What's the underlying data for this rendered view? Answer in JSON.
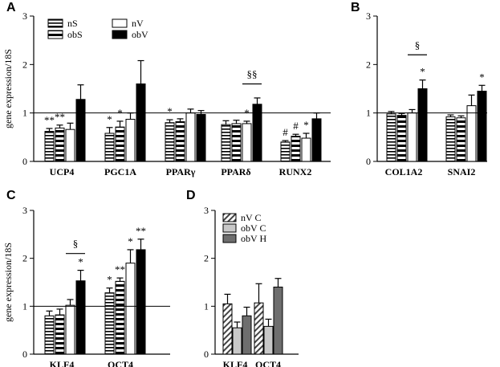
{
  "colors": {
    "black": "#000000",
    "white": "#ffffff",
    "light_gray": "#c8c8c8",
    "dark_gray": "#6e6e6e"
  },
  "chart_data": [
    {
      "panel": "A",
      "type": "bar",
      "ylabel": "gene expression/18S",
      "ylim": [
        0,
        3
      ],
      "yticks": [
        "0",
        "1",
        "2",
        "3"
      ],
      "reference_line": 1,
      "categories": [
        "UCP4",
        "PGC1A",
        "PPARγ",
        "PPARδ",
        "RUNX2"
      ],
      "legend": [
        "nS",
        "obS",
        "nV",
        "obV"
      ],
      "series": [
        {
          "name": "nS",
          "pattern": "hstripe-thin",
          "values": [
            0.62,
            0.58,
            0.8,
            0.76,
            0.4
          ],
          "errors": [
            0.06,
            0.12,
            0.06,
            0.08,
            0.03
          ]
        },
        {
          "name": "obS",
          "pattern": "hstripe-thick",
          "values": [
            0.69,
            0.71,
            0.82,
            0.78,
            0.52
          ],
          "errors": [
            0.06,
            0.12,
            0.06,
            0.07,
            0.04
          ]
        },
        {
          "name": "nV",
          "pattern": "white",
          "values": [
            0.66,
            0.87,
            1.0,
            0.78,
            0.48
          ],
          "errors": [
            0.13,
            0.13,
            0.08,
            0.05,
            0.1
          ]
        },
        {
          "name": "obV",
          "pattern": "black",
          "values": [
            1.28,
            1.6,
            0.97,
            1.18,
            0.88
          ],
          "errors": [
            0.3,
            0.48,
            0.08,
            0.13,
            0.12
          ]
        }
      ],
      "annotations": [
        {
          "cat": 0,
          "series": 0,
          "text": "**"
        },
        {
          "cat": 0,
          "series": 1,
          "text": "**"
        },
        {
          "cat": 1,
          "series": 0,
          "text": "*"
        },
        {
          "cat": 1,
          "series": 1,
          "text": "*"
        },
        {
          "cat": 2,
          "series": 0,
          "text": "*"
        },
        {
          "cat": 3,
          "series": 2,
          "text": "*"
        },
        {
          "cat": 4,
          "series": 0,
          "text": "#"
        },
        {
          "cat": 4,
          "series": 1,
          "text": "#"
        },
        {
          "cat": 4,
          "series": 2,
          "text": "*"
        }
      ],
      "brackets": [
        {
          "cat": 3,
          "from": 2,
          "to": 3,
          "text": "§§",
          "y": 1.6
        }
      ]
    },
    {
      "panel": "B",
      "type": "bar",
      "ylim": [
        0,
        3
      ],
      "yticks": [
        "0",
        "1",
        "2",
        "3"
      ],
      "reference_line": 1,
      "categories": [
        "COL1A2",
        "SNAI2"
      ],
      "series": [
        {
          "name": "nS",
          "pattern": "hstripe-thin",
          "values": [
            0.98,
            0.92
          ],
          "errors": [
            0.05,
            0.04
          ]
        },
        {
          "name": "obS",
          "pattern": "hstripe-thick",
          "values": [
            0.95,
            0.9
          ],
          "errors": [
            0.04,
            0.04
          ]
        },
        {
          "name": "nV",
          "pattern": "white",
          "values": [
            1.0,
            1.15
          ],
          "errors": [
            0.07,
            0.22
          ]
        },
        {
          "name": "obV",
          "pattern": "black",
          "values": [
            1.5,
            1.45
          ],
          "errors": [
            0.18,
            0.12
          ]
        }
      ],
      "annotations": [
        {
          "cat": 0,
          "series": 3,
          "text": "*"
        },
        {
          "cat": 1,
          "series": 3,
          "text": "*"
        }
      ],
      "brackets": [
        {
          "cat": 0,
          "from": 2,
          "to": 3,
          "text": "§",
          "y": 2.2
        }
      ]
    },
    {
      "panel": "C",
      "type": "bar",
      "ylabel": "gene expression/18S",
      "ylim": [
        0,
        3
      ],
      "yticks": [
        "0",
        "1",
        "2",
        "3"
      ],
      "reference_line": 1,
      "categories": [
        "KLF4",
        "OCT4"
      ],
      "series": [
        {
          "name": "nS",
          "pattern": "hstripe-thin",
          "values": [
            0.8,
            1.28
          ],
          "errors": [
            0.1,
            0.1
          ]
        },
        {
          "name": "obS",
          "pattern": "hstripe-thick",
          "values": [
            0.82,
            1.52
          ],
          "errors": [
            0.12,
            0.07
          ]
        },
        {
          "name": "nV",
          "pattern": "white",
          "values": [
            1.02,
            1.9
          ],
          "errors": [
            0.12,
            0.28
          ]
        },
        {
          "name": "obV",
          "pattern": "black",
          "values": [
            1.53,
            2.18
          ],
          "errors": [
            0.22,
            0.22
          ]
        }
      ],
      "annotations": [
        {
          "cat": 0,
          "series": 3,
          "text": "*"
        },
        {
          "cat": 1,
          "series": 0,
          "text": "*"
        },
        {
          "cat": 1,
          "series": 1,
          "text": "**"
        },
        {
          "cat": 1,
          "series": 2,
          "text": "*"
        },
        {
          "cat": 1,
          "series": 3,
          "text": "**"
        }
      ],
      "brackets": [
        {
          "cat": 0,
          "from": 2,
          "to": 3,
          "text": "§",
          "y": 2.1
        }
      ]
    },
    {
      "panel": "D",
      "type": "bar",
      "ylim": [
        0,
        3
      ],
      "yticks": [
        "0",
        "1",
        "2",
        "3"
      ],
      "categories": [
        "KLF4",
        "OCT4"
      ],
      "legend": [
        "nV C",
        "obV C",
        "obV H"
      ],
      "series": [
        {
          "name": "nV C",
          "pattern": "diag",
          "values": [
            1.05,
            1.07
          ],
          "errors": [
            0.2,
            0.4
          ]
        },
        {
          "name": "obV C",
          "pattern": "light_gray",
          "values": [
            0.55,
            0.58
          ],
          "errors": [
            0.12,
            0.15
          ]
        },
        {
          "name": "obV H",
          "pattern": "dark_gray",
          "values": [
            0.8,
            1.4
          ],
          "errors": [
            0.18,
            0.18
          ]
        }
      ]
    }
  ]
}
